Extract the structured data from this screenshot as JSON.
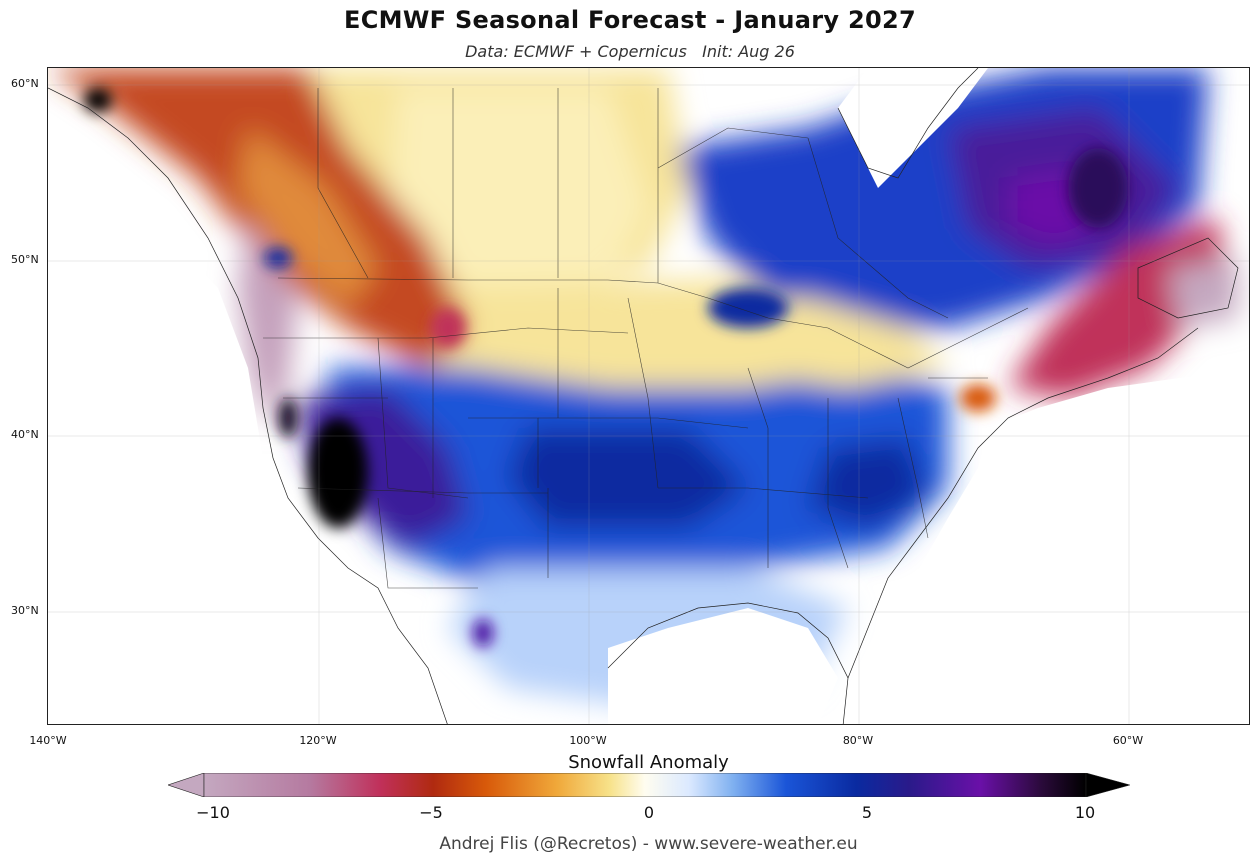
{
  "header": {
    "title": "ECMWF Seasonal Forecast - January 2027",
    "subtitle": "Data: ECMWF + Copernicus   Init: Aug 26"
  },
  "map": {
    "region": "North America",
    "variable": "Snowfall Anomaly",
    "lat_ticks": [
      "60°N",
      "50°N",
      "40°N",
      "30°N"
    ],
    "lon_ticks": [
      "140°W",
      "120°W",
      "100°W",
      "80°W",
      "60°W"
    ]
  },
  "colorbar": {
    "title": "Snowfall Anomaly",
    "ticks": [
      "−10",
      "−5",
      "0",
      "5",
      "10"
    ],
    "min": -10,
    "max": 10,
    "extend": "both",
    "colors": [
      "#c4a8c0",
      "#b57aa0",
      "#c0305a",
      "#b02a10",
      "#d85a0a",
      "#f0a83a",
      "#f7e28a",
      "#fffdf0",
      "#dbe9ff",
      "#7fb0f0",
      "#1a55d8",
      "#0a2aa0",
      "#2a1a8a",
      "#6a10a8",
      "#2a0a3a",
      "#000000"
    ]
  },
  "credit": "Andrej Flis (@Recretos) - www.severe-weather.eu"
}
